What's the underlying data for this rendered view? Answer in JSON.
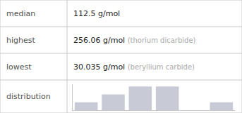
{
  "chart_data": {
    "type": "bar",
    "annotations": [
      [
        "median",
        "112.5 g/mol"
      ],
      [
        "highest",
        "256.06 g/mol",
        "(thorium dicarbide)"
      ],
      [
        "lowest",
        "30.035 g/mol",
        "(beryllium carbide)"
      ],
      [
        "distribution"
      ]
    ],
    "categories": [
      null,
      null,
      null,
      null,
      null,
      null
    ],
    "values": [
      1,
      2,
      3,
      3,
      0,
      1
    ],
    "color": "#c8cad6",
    "ylim": [
      0,
      3.3
    ],
    "grid": false,
    "tick_labels": false
  }
}
